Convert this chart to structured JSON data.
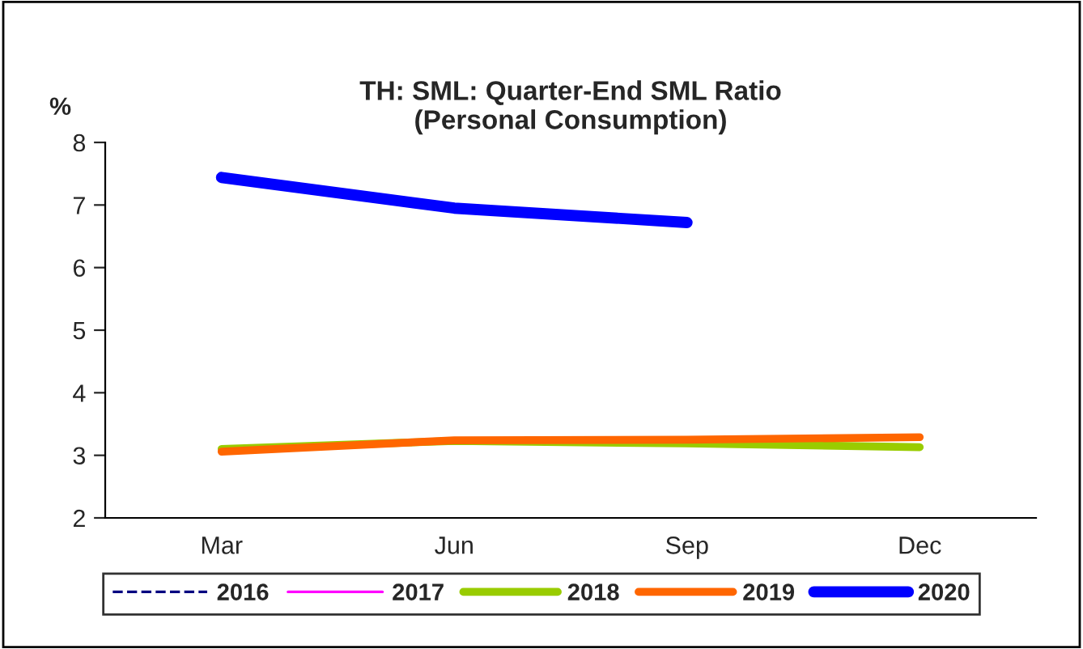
{
  "chart_data": {
    "type": "line",
    "title": "TH: SML: Quarter-End SML Ratio\n(Personal Consumption)",
    "ylabel": "%",
    "categories": [
      "Mar",
      "Jun",
      "Sep",
      "Dec"
    ],
    "series": [
      {
        "name": "2016",
        "color": "#000080",
        "line_style": "dashed",
        "values": [
          null,
          null,
          null,
          null
        ]
      },
      {
        "name": "2017",
        "color": "#ff00ff",
        "line_style": "solid",
        "values": [
          null,
          null,
          null,
          null
        ]
      },
      {
        "name": "2018",
        "color": "#99cc00",
        "line_style": "solid",
        "values": [
          3.1,
          3.23,
          3.19,
          3.13
        ]
      },
      {
        "name": "2019",
        "color": "#ff6600",
        "line_style": "solid",
        "values": [
          3.06,
          3.24,
          3.25,
          3.29
        ]
      },
      {
        "name": "2020",
        "color": "#0000ff",
        "line_style": "solid",
        "values": [
          7.44,
          6.95,
          6.72,
          null
        ]
      }
    ],
    "ylim": [
      2,
      8
    ],
    "yticks": [
      2,
      3,
      4,
      5,
      6,
      7,
      8
    ],
    "grid": false,
    "legend": "bottom",
    "marker": "none"
  }
}
